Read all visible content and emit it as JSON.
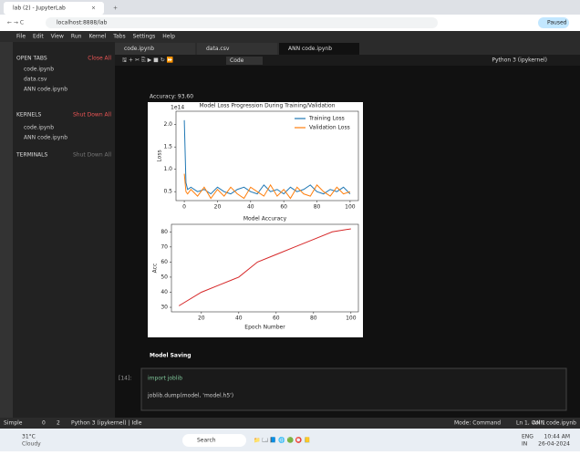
{
  "browser": {
    "tab_title": "lab (2) - JupyterLab",
    "url": "localhost:8888/lab",
    "profile": "Paused"
  },
  "menu": [
    "File",
    "Edit",
    "View",
    "Run",
    "Kernel",
    "Tabs",
    "Settings",
    "Help"
  ],
  "sidebar": {
    "open_tabs": "OPEN TABS",
    "close_all": "Close All",
    "open_files": [
      "code.ipynb",
      "data.csv",
      "ANN code.ipynb"
    ],
    "kernels": "KERNELS",
    "shut_down_all": "Shut Down All",
    "kernel_files": [
      "code.ipynb",
      "ANN code.ipynb"
    ],
    "terminals": "TERMINALS",
    "terminals_shut": "Shut Down All"
  },
  "notebook_tabs": [
    "code.ipynb",
    "data.csv",
    "ANN code.ipynb"
  ],
  "toolbar": {
    "cell_type": "Code",
    "kernel": "Python 3 (ipykernel)"
  },
  "output_text": "Accuracy: 93.60",
  "chart_data": [
    {
      "type": "line",
      "title": "Model Loss Progression During Training/Validation",
      "offset_label": "1e14",
      "ylabel": "Loss",
      "x": [
        0,
        1,
        2,
        4,
        8,
        12,
        16,
        20,
        24,
        28,
        32,
        36,
        40,
        44,
        48,
        52,
        56,
        60,
        64,
        68,
        72,
        76,
        80,
        84,
        88,
        92,
        96,
        100
      ],
      "series": [
        {
          "name": "Training Loss",
          "color": "#1f77b4",
          "values": [
            2.1,
            0.7,
            0.55,
            0.6,
            0.5,
            0.55,
            0.45,
            0.6,
            0.5,
            0.45,
            0.55,
            0.6,
            0.5,
            0.45,
            0.65,
            0.5,
            0.55,
            0.45,
            0.6,
            0.5,
            0.55,
            0.65,
            0.5,
            0.45,
            0.55,
            0.5,
            0.6,
            0.45
          ]
        },
        {
          "name": "Validation Loss",
          "color": "#ff7f0e",
          "values": [
            0.9,
            0.5,
            0.45,
            0.55,
            0.4,
            0.6,
            0.35,
            0.55,
            0.4,
            0.6,
            0.45,
            0.35,
            0.6,
            0.5,
            0.4,
            0.65,
            0.4,
            0.55,
            0.35,
            0.6,
            0.45,
            0.4,
            0.65,
            0.5,
            0.4,
            0.6,
            0.45,
            0.5
          ]
        }
      ],
      "xlim": [
        -5,
        105
      ],
      "ylim": [
        0.3,
        2.3
      ],
      "xticks": [
        0,
        20,
        40,
        60,
        80,
        100
      ],
      "yticks": [
        0.5,
        {
          "value": 1,
          "label": "1.0"
        },
        1.5,
        {
          "value": 2,
          "label": "2.0"
        }
      ],
      "legend": "upper right"
    },
    {
      "type": "line",
      "title": "Model Accuracy",
      "xlabel": "Epoch Number",
      "ylabel": "Acc",
      "x": [
        8,
        20,
        30,
        40,
        50,
        60,
        70,
        80,
        90,
        100
      ],
      "series": [
        {
          "name": "Accuracy",
          "color": "#d62728",
          "values": [
            31,
            40,
            45,
            50,
            60,
            65,
            70,
            75,
            80,
            82
          ]
        }
      ],
      "xlim": [
        4,
        104
      ],
      "ylim": [
        27,
        85
      ],
      "xticks": [
        20,
        40,
        60,
        80,
        100
      ],
      "yticks": [
        30,
        40,
        50,
        60,
        70,
        80
      ]
    }
  ],
  "heading": "Model Saving",
  "cell": {
    "prompt": "[14]:",
    "lines": [
      "import joblib",
      "joblib.dump(model, 'model.h5')"
    ]
  },
  "status": {
    "mode": "Simple",
    "n1": 0,
    "n2": 2,
    "kernel": "Python 3 (ipykernel) | Idle",
    "mode_command": "Mode: Command",
    "position": "Ln 1, Col 1",
    "file": "ANN code.ipynb"
  },
  "taskbar": {
    "temp": "31°C",
    "weather": "Cloudy",
    "search": "Search",
    "lang": "ENG",
    "region": "IN",
    "time": "10:44 AM",
    "date": "26-04-2024"
  }
}
